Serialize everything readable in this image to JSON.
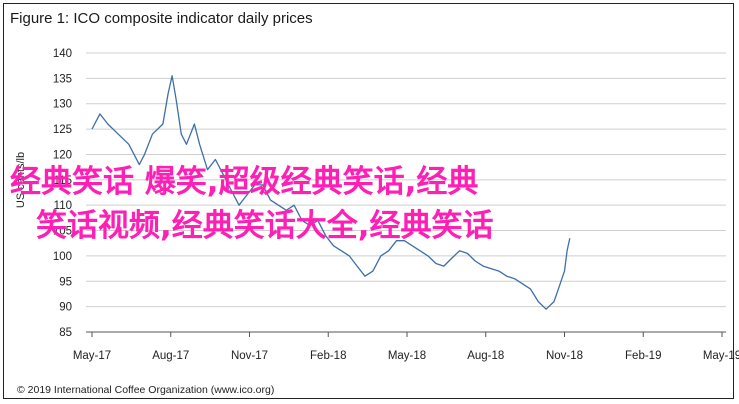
{
  "title": "Figure 1: ICO composite indicator daily prices",
  "footer": "© 2019 International Coffee Organization (www.ico.org)",
  "overlay": {
    "line1": "经典笑话 爆笑,超级经典笑话,经典",
    "line2": "笑话视频,经典笑话大全,经典笑话",
    "color": "#ff1fb5"
  },
  "chart_data": {
    "type": "line",
    "title": "Figure 1: ICO composite indicator daily prices",
    "xlabel": "",
    "ylabel": "US cents/lb",
    "ylim": [
      85,
      140
    ],
    "yticks": [
      85,
      90,
      95,
      100,
      105,
      110,
      115,
      120,
      125,
      130,
      135,
      140
    ],
    "xticks": [
      "May-17",
      "Aug-17",
      "Nov-17",
      "Feb-18",
      "May-18",
      "Aug-18",
      "Nov-18",
      "Feb-19",
      "May-19"
    ],
    "grid": "horizontal",
    "line_color": "#3d6fa8",
    "series": [
      {
        "values": [
          [
            0,
            125
          ],
          [
            0.3,
            128
          ],
          [
            0.6,
            126
          ],
          [
            1.0,
            124
          ],
          [
            1.4,
            122
          ],
          [
            1.8,
            118
          ],
          [
            2.0,
            120
          ],
          [
            2.3,
            124
          ],
          [
            2.7,
            126
          ],
          [
            2.9,
            132
          ],
          [
            3.05,
            135.5
          ],
          [
            3.2,
            131
          ],
          [
            3.4,
            124
          ],
          [
            3.6,
            122
          ],
          [
            3.9,
            126
          ],
          [
            4.1,
            122
          ],
          [
            4.4,
            117
          ],
          [
            4.7,
            119
          ],
          [
            5.0,
            116
          ],
          [
            5.3,
            113
          ],
          [
            5.6,
            110
          ],
          [
            5.9,
            112
          ],
          [
            6.2,
            114
          ],
          [
            6.5,
            114
          ],
          [
            6.8,
            111
          ],
          [
            7.1,
            110
          ],
          [
            7.4,
            109
          ],
          [
            7.7,
            110
          ],
          [
            8.0,
            107
          ],
          [
            8.3,
            106
          ],
          [
            8.6,
            107
          ],
          [
            8.9,
            104
          ],
          [
            9.2,
            102
          ],
          [
            9.5,
            101
          ],
          [
            9.8,
            100
          ],
          [
            10.1,
            98
          ],
          [
            10.4,
            96
          ],
          [
            10.7,
            97
          ],
          [
            11.0,
            100
          ],
          [
            11.3,
            101
          ],
          [
            11.6,
            103
          ],
          [
            11.9,
            103
          ],
          [
            12.2,
            102
          ],
          [
            12.5,
            101
          ],
          [
            12.8,
            100
          ],
          [
            13.1,
            98.5
          ],
          [
            13.4,
            98
          ],
          [
            13.7,
            99.5
          ],
          [
            14.0,
            101
          ],
          [
            14.3,
            100.5
          ],
          [
            14.6,
            99
          ],
          [
            14.9,
            98
          ],
          [
            15.2,
            97.5
          ],
          [
            15.5,
            97
          ],
          [
            15.8,
            96
          ],
          [
            16.1,
            95.5
          ],
          [
            16.4,
            94.5
          ],
          [
            16.7,
            93.5
          ],
          [
            17.0,
            91
          ],
          [
            17.3,
            89.5
          ],
          [
            17.6,
            91
          ],
          [
            17.8,
            94
          ],
          [
            18.0,
            97
          ],
          [
            18.1,
            101
          ],
          [
            18.2,
            103.5
          ]
        ]
      }
    ]
  }
}
